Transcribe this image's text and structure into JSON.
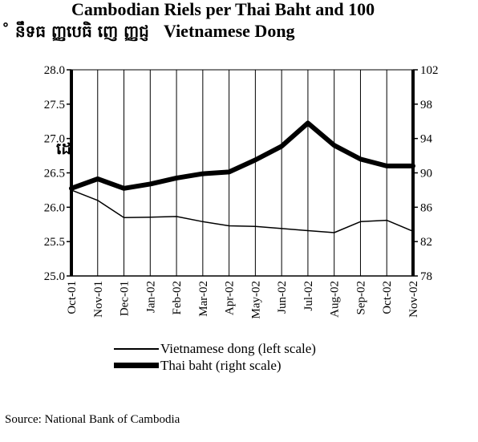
{
  "title_line1": "Cambodian Riels per Thai Baht and 100",
  "title_khmer": "˚ នឹទធ ញ្ញបេធិ ញេ ញ្ញជ្ញ",
  "title_line2": "Vietnamese Dong",
  "side_glyph": "ដេ",
  "source": "Source: National Bank of Cambodia",
  "chart_data": {
    "type": "line",
    "categories": [
      "Oct-01",
      "Nov-01",
      "Dec-01",
      "Jan-02",
      "Feb-02",
      "Mar-02",
      "Apr-02",
      "May-02",
      "Jun-02",
      "Jul-02",
      "Aug-02",
      "Sep-02",
      "Oct-02",
      "Nov-02"
    ],
    "left_axis": {
      "ylim": [
        25.0,
        28.0
      ],
      "ticks": [
        "25.0",
        "25.5",
        "26.0",
        "26.5",
        "27.0",
        "27.5",
        "28.0"
      ]
    },
    "right_axis": {
      "ylim": [
        78,
        102
      ],
      "ticks": [
        "78",
        "82",
        "86",
        "90",
        "94",
        "98",
        "102"
      ]
    },
    "series": [
      {
        "name": "Vietnamese dong (left scale)",
        "axis": "left",
        "style": "thin",
        "values": [
          26.25,
          26.1,
          25.85,
          25.855,
          25.865,
          25.79,
          25.73,
          25.72,
          25.69,
          25.66,
          25.63,
          25.79,
          25.81,
          25.65
        ]
      },
      {
        "name": "Thai baht (right scale)",
        "axis": "right",
        "style": "thick",
        "values": [
          88.2,
          89.3,
          88.2,
          88.7,
          89.4,
          89.9,
          90.1,
          91.5,
          93.1,
          95.8,
          93.2,
          91.6,
          90.8,
          90.8
        ]
      }
    ],
    "grid": true
  }
}
